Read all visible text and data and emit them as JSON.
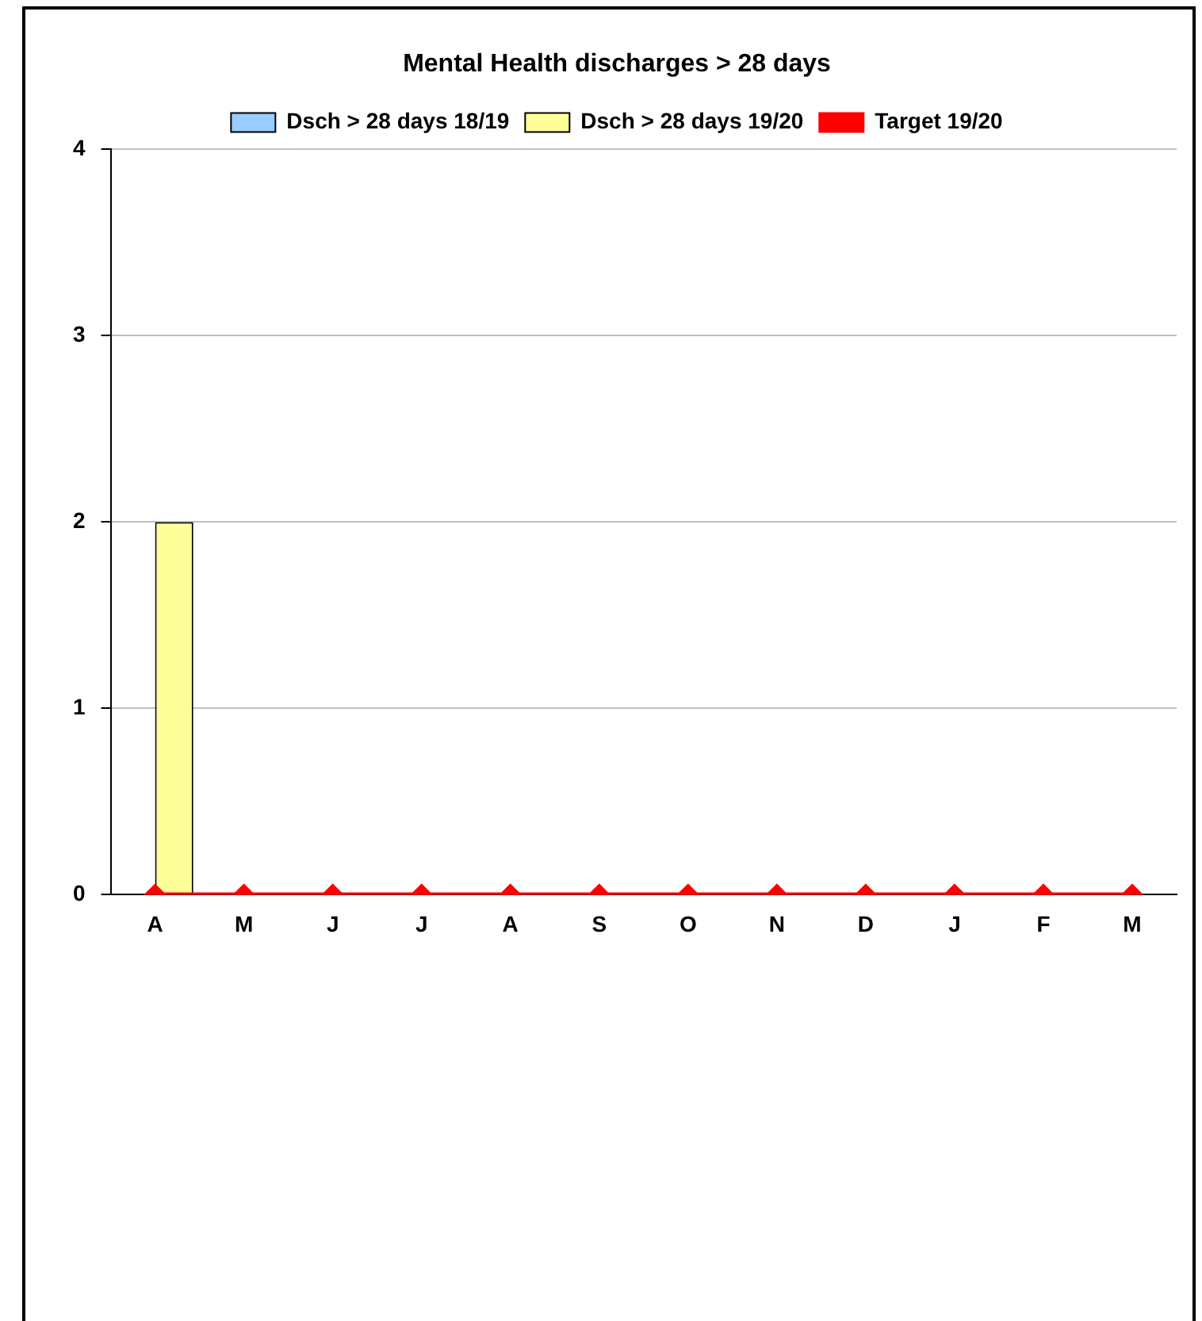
{
  "chart_data": {
    "type": "bar",
    "title": "Mental Health discharges > 28 days",
    "categories": [
      "A",
      "M",
      "J",
      "J",
      "A",
      "S",
      "O",
      "N",
      "D",
      "J",
      "F",
      "M"
    ],
    "series": [
      {
        "name": "Dsch > 28 days 18/19",
        "color": "#99ccff",
        "values": [
          0,
          0,
          0,
          0,
          0,
          0,
          0,
          0,
          0,
          0,
          0,
          0
        ]
      },
      {
        "name": "Dsch > 28 days 19/20",
        "color": "#ffff99",
        "values": [
          2,
          0,
          0,
          0,
          0,
          0,
          0,
          0,
          0,
          0,
          0,
          0
        ]
      },
      {
        "name": "Target 19/20",
        "type": "line",
        "color": "#ff0000",
        "marker": "diamond",
        "values": [
          0,
          0,
          0,
          0,
          0,
          0,
          0,
          0,
          0,
          0,
          0,
          0
        ]
      }
    ],
    "ylim": [
      0,
      4
    ],
    "yticks": [
      0,
      1,
      2,
      3,
      4
    ],
    "grid": "y",
    "legend": "top"
  }
}
